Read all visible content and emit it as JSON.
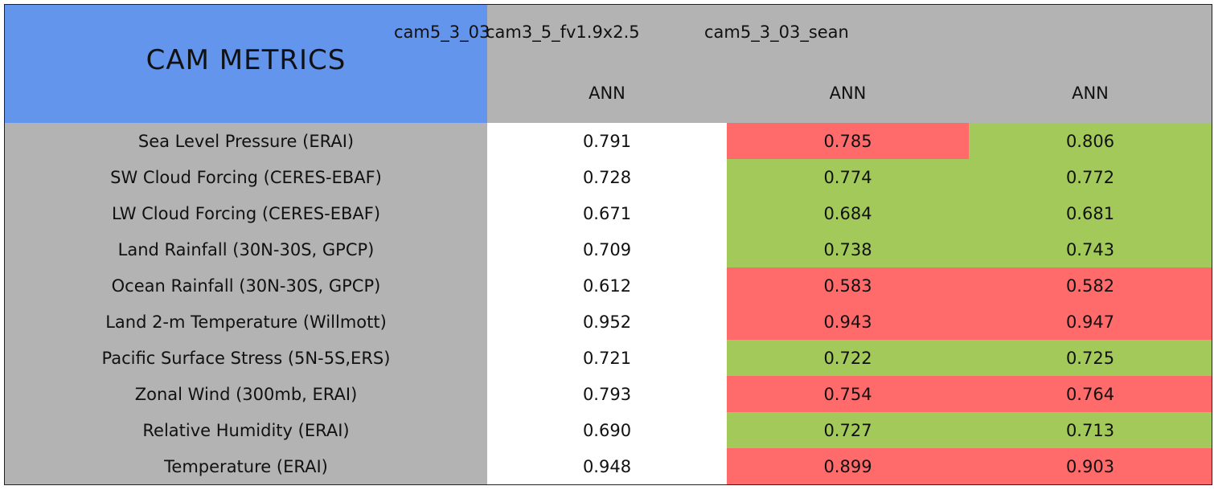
{
  "table": {
    "title": "CAM METRICS",
    "cases": [
      "cam5_3_03",
      "cam3_5_fv1.9x2.5",
      "cam5_3_03_sean"
    ],
    "seasons": [
      "ANN",
      "ANN",
      "ANN"
    ],
    "rows": [
      {
        "label": "Sea Level Pressure (ERAI)",
        "values": [
          "0.791",
          "0.785",
          "0.806"
        ],
        "colors": [
          "#ffffff",
          "#ff6b6b",
          "#a3c95b"
        ]
      },
      {
        "label": "SW Cloud Forcing (CERES-EBAF)",
        "values": [
          "0.728",
          "0.774",
          "0.772"
        ],
        "colors": [
          "#ffffff",
          "#a3c95b",
          "#a3c95b"
        ]
      },
      {
        "label": "LW Cloud Forcing (CERES-EBAF)",
        "values": [
          "0.671",
          "0.684",
          "0.681"
        ],
        "colors": [
          "#ffffff",
          "#a3c95b",
          "#a3c95b"
        ]
      },
      {
        "label": "Land Rainfall (30N-30S, GPCP)",
        "values": [
          "0.709",
          "0.738",
          "0.743"
        ],
        "colors": [
          "#ffffff",
          "#a3c95b",
          "#a3c95b"
        ]
      },
      {
        "label": "Ocean Rainfall (30N-30S, GPCP)",
        "values": [
          "0.612",
          "0.583",
          "0.582"
        ],
        "colors": [
          "#ffffff",
          "#ff6b6b",
          "#ff6b6b"
        ]
      },
      {
        "label": "Land 2-m Temperature (Willmott)",
        "values": [
          "0.952",
          "0.943",
          "0.947"
        ],
        "colors": [
          "#ffffff",
          "#ff6b6b",
          "#ff6b6b"
        ]
      },
      {
        "label": "Pacific Surface Stress (5N-5S,ERS)",
        "values": [
          "0.721",
          "0.722",
          "0.725"
        ],
        "colors": [
          "#ffffff",
          "#a3c95b",
          "#a3c95b"
        ]
      },
      {
        "label": "Zonal Wind (300mb, ERAI)",
        "values": [
          "0.793",
          "0.754",
          "0.764"
        ],
        "colors": [
          "#ffffff",
          "#ff6b6b",
          "#ff6b6b"
        ]
      },
      {
        "label": "Relative Humidity (ERAI)",
        "values": [
          "0.690",
          "0.727",
          "0.713"
        ],
        "colors": [
          "#ffffff",
          "#a3c95b",
          "#a3c95b"
        ]
      },
      {
        "label": "Temperature (ERAI)",
        "values": [
          "0.948",
          "0.899",
          "0.903"
        ],
        "colors": [
          "#ffffff",
          "#ff6b6b",
          "#ff6b6b"
        ]
      }
    ]
  }
}
